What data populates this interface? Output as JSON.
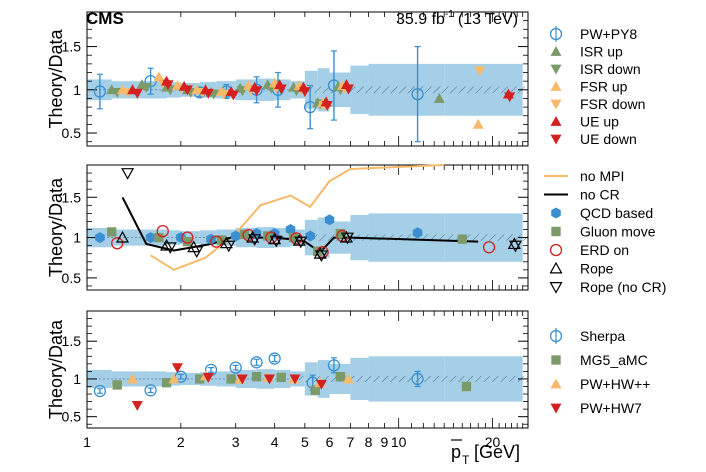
{
  "colors": {
    "band": "#a5cfe6",
    "pw_py8": "#3b8fd0",
    "green": "#7a9a6a",
    "orange": "#f7b96a",
    "red": "#d42020",
    "black": "#000000"
  },
  "header": {
    "experiment": "CMS",
    "lumi": "35.9 fb",
    "lumi_sup": "-1",
    "energy": "(13 TeV)"
  },
  "axes": {
    "ylabel": "Theory/Data",
    "xlabel_main": "p",
    "xlabel_sub": "T",
    "xlabel_unit": "[GeV]",
    "xlim": [
      1,
      26
    ],
    "xscale": "log",
    "ylim": [
      0.35,
      1.9
    ],
    "yticks": [
      0.5,
      1,
      1.5
    ],
    "ytick_labels": [
      "0.5",
      "1",
      "1.5"
    ],
    "xtick_values": [
      1,
      2,
      3,
      4,
      5,
      6,
      7,
      8,
      9,
      10,
      20
    ],
    "xtick_labels": [
      "1",
      "2",
      "3",
      "4",
      "5",
      "6",
      "7",
      "8",
      "9",
      "10",
      "20"
    ]
  },
  "band_edges": [
    1,
    1.2,
    1.4,
    1.6,
    1.8,
    2,
    2.3,
    2.6,
    3,
    3.5,
    4,
    4.5,
    5,
    5.5,
    6,
    7,
    8,
    14,
    25
  ],
  "band_halfwidths": [
    0.12,
    0.1,
    0.1,
    0.1,
    0.09,
    0.08,
    0.09,
    0.1,
    0.12,
    0.13,
    0.12,
    0.1,
    0.22,
    0.25,
    0.2,
    0.28,
    0.3,
    0.3
  ],
  "chart_data": [
    {
      "type": "scatter",
      "panel": "top",
      "ylabel": "Theory/Data",
      "series": [
        {
          "name": "PW+PY8",
          "marker": "circle-open",
          "color": "#3b8fd0",
          "x": [
            1.1,
            1.6,
            2.3,
            2.8,
            3.5,
            4.1,
            5.2,
            6.2,
            11.5
          ],
          "y": [
            0.98,
            1.1,
            0.97,
            0.98,
            1.0,
            1.0,
            0.8,
            1.05,
            0.95
          ],
          "err": [
            0.2,
            0.15,
            0.05,
            0.08,
            0.15,
            0.2,
            0.25,
            0.4,
            0.55
          ]
        },
        {
          "name": "ISR up",
          "marker": "triangle-up",
          "color": "#7a9a6a",
          "x": [
            1.2,
            1.5,
            1.8,
            2.1,
            2.5,
            3.1,
            3.8,
            4.6,
            5.5,
            6.4,
            13.5
          ],
          "y": [
            1.0,
            1.06,
            1.03,
            1.0,
            0.97,
            1.02,
            1.06,
            1.03,
            0.85,
            1.04,
            0.9
          ]
        },
        {
          "name": "ISR down",
          "marker": "triangle-down",
          "color": "#7a9a6a",
          "x": [
            1.25,
            1.55,
            1.85,
            2.15,
            2.55,
            3.15,
            3.9,
            4.7,
            5.6,
            6.5
          ],
          "y": [
            0.97,
            1.03,
            1.0,
            0.97,
            0.95,
            0.99,
            1.02,
            0.99,
            0.84,
            1.0
          ]
        },
        {
          "name": "FSR up",
          "marker": "triangle-up",
          "color": "#f7b96a",
          "x": [
            1.3,
            1.7,
            1.95,
            2.25,
            2.7,
            3.3,
            4.0,
            4.8,
            5.7,
            6.6,
            18.0
          ],
          "y": [
            1.0,
            1.15,
            1.05,
            1.0,
            0.98,
            1.05,
            1.08,
            1.05,
            0.85,
            1.05,
            0.6
          ]
        },
        {
          "name": "FSR down",
          "marker": "triangle-down",
          "color": "#f7b96a",
          "x": [
            1.35,
            1.75,
            2.0,
            2.35,
            2.75,
            3.35,
            4.05,
            4.85,
            5.75,
            6.7,
            18.2
          ],
          "y": [
            0.97,
            1.08,
            1.02,
            0.97,
            0.95,
            1.0,
            1.02,
            1.0,
            0.82,
            1.02,
            1.22
          ]
        },
        {
          "name": "UE up",
          "marker": "triangle-up",
          "color": "#d42020",
          "x": [
            1.4,
            1.8,
            2.05,
            2.4,
            2.9,
            3.45,
            4.15,
            4.95,
            5.85,
            6.8,
            22.5
          ],
          "y": [
            1.0,
            1.1,
            1.04,
            1.0,
            0.98,
            1.03,
            1.06,
            1.03,
            0.86,
            1.06,
            0.95
          ]
        },
        {
          "name": "UE down",
          "marker": "triangle-down",
          "color": "#d42020",
          "x": [
            1.45,
            1.82,
            2.1,
            2.45,
            2.95,
            3.5,
            4.2,
            5.0,
            5.9,
            6.9,
            22.7
          ],
          "y": [
            0.96,
            1.06,
            1.0,
            0.96,
            0.94,
            0.99,
            1.01,
            0.98,
            0.82,
            1.01,
            0.92
          ]
        }
      ]
    },
    {
      "type": "scatter",
      "panel": "middle",
      "ylabel": "Theory/Data",
      "series": [
        {
          "name": "no MPI",
          "marker": "line",
          "color": "#f7b96a",
          "x": [
            1.6,
            1.9,
            2.4,
            3.0,
            3.6,
            4.5,
            5.2,
            6.0,
            7.0,
            14.0
          ],
          "y": [
            0.78,
            0.6,
            0.75,
            1.05,
            1.4,
            1.52,
            1.38,
            1.7,
            1.85,
            1.9
          ]
        },
        {
          "name": "no CR",
          "marker": "line",
          "color": "#000000",
          "x": [
            1.3,
            1.55,
            1.9,
            2.5,
            3.0,
            3.5,
            4.0,
            4.5,
            5.0,
            5.6,
            6.2,
            7.0,
            18.0
          ],
          "y": [
            1.5,
            0.92,
            0.84,
            0.92,
            1.02,
            1.0,
            1.0,
            0.98,
            0.95,
            0.82,
            1.0,
            1.0,
            0.95
          ]
        },
        {
          "name": "QCD based",
          "marker": "hexagon",
          "color": "#3b8fd0",
          "x": [
            1.1,
            1.6,
            2.0,
            2.5,
            3.0,
            3.5,
            4.0,
            4.5,
            5.2,
            6.0,
            11.5
          ],
          "y": [
            1.0,
            1.0,
            1.0,
            0.98,
            1.02,
            1.05,
            1.05,
            1.1,
            1.02,
            1.22,
            1.06
          ]
        },
        {
          "name": "Gluon move",
          "marker": "square",
          "color": "#7a9a6a",
          "x": [
            1.2,
            1.7,
            2.1,
            2.7,
            3.2,
            3.8,
            4.6,
            5.5,
            6.5,
            16.0
          ],
          "y": [
            1.07,
            1.0,
            0.95,
            0.97,
            1.04,
            1.02,
            1.0,
            0.83,
            1.05,
            0.98
          ]
        },
        {
          "name": "ERD on",
          "marker": "circle-open",
          "color": "#d42020",
          "x": [
            1.25,
            1.75,
            2.1,
            2.6,
            3.3,
            3.9,
            4.7,
            5.7,
            6.6,
            19.5
          ],
          "y": [
            0.93,
            1.08,
            1.0,
            0.95,
            1.03,
            1.0,
            0.99,
            0.82,
            1.02,
            0.88
          ]
        },
        {
          "name": "Rope",
          "marker": "triangle-up-open",
          "color": "#000000",
          "x": [
            1.3,
            1.8,
            2.2,
            2.8,
            3.4,
            4.0,
            4.8,
            5.6,
            6.8,
            23.5
          ],
          "y": [
            1.0,
            0.9,
            0.88,
            0.93,
            1.0,
            0.98,
            0.96,
            0.8,
            1.0,
            0.92
          ]
        },
        {
          "name": "Rope (no CR)",
          "marker": "triangle-down-open",
          "color": "#000000",
          "x": [
            1.35,
            1.85,
            2.25,
            2.85,
            3.45,
            4.05,
            4.85,
            5.65,
            6.85,
            23.7
          ],
          "y": [
            1.8,
            0.88,
            0.83,
            0.9,
            0.98,
            0.96,
            0.95,
            0.78,
            1.0,
            0.9
          ]
        }
      ]
    },
    {
      "type": "scatter",
      "panel": "bottom",
      "ylabel": "Theory/Data",
      "series": [
        {
          "name": "Sherpa",
          "marker": "circle-open",
          "color": "#3b8fd0",
          "x": [
            1.1,
            1.6,
            2.0,
            2.5,
            3.0,
            3.5,
            4.0,
            5.3,
            6.2,
            11.5
          ],
          "y": [
            0.84,
            0.85,
            1.03,
            1.12,
            1.15,
            1.22,
            1.27,
            0.95,
            1.18,
            1.0
          ],
          "err": [
            0.03,
            0.03,
            0.03,
            0.03,
            0.03,
            0.04,
            0.04,
            0.1,
            0.1,
            0.1
          ]
        },
        {
          "name": "MG5_aMC",
          "marker": "square",
          "color": "#7a9a6a",
          "x": [
            1.25,
            1.8,
            2.3,
            2.9,
            3.5,
            4.2,
            5.4,
            6.5,
            16.5
          ],
          "y": [
            0.92,
            0.95,
            1.0,
            1.0,
            1.03,
            1.02,
            0.85,
            1.03,
            0.9
          ]
        },
        {
          "name": "PW+HW++",
          "marker": "triangle-up",
          "color": "#f7b96a",
          "x": [
            1.4,
            1.9,
            2.4,
            3.1,
            3.8,
            4.6,
            5.6,
            6.9
          ],
          "y": [
            1.0,
            1.0,
            1.04,
            1.0,
            1.02,
            1.0,
            0.95,
            1.0
          ]
        },
        {
          "name": "PW+HW7",
          "marker": "triangle-down",
          "color": "#d42020",
          "x": [
            1.45,
            1.95,
            2.45,
            3.15,
            3.85,
            4.65,
            5.65
          ],
          "y": [
            0.65,
            1.15,
            1.02,
            1.0,
            1.0,
            1.0,
            0.93
          ]
        }
      ]
    }
  ]
}
